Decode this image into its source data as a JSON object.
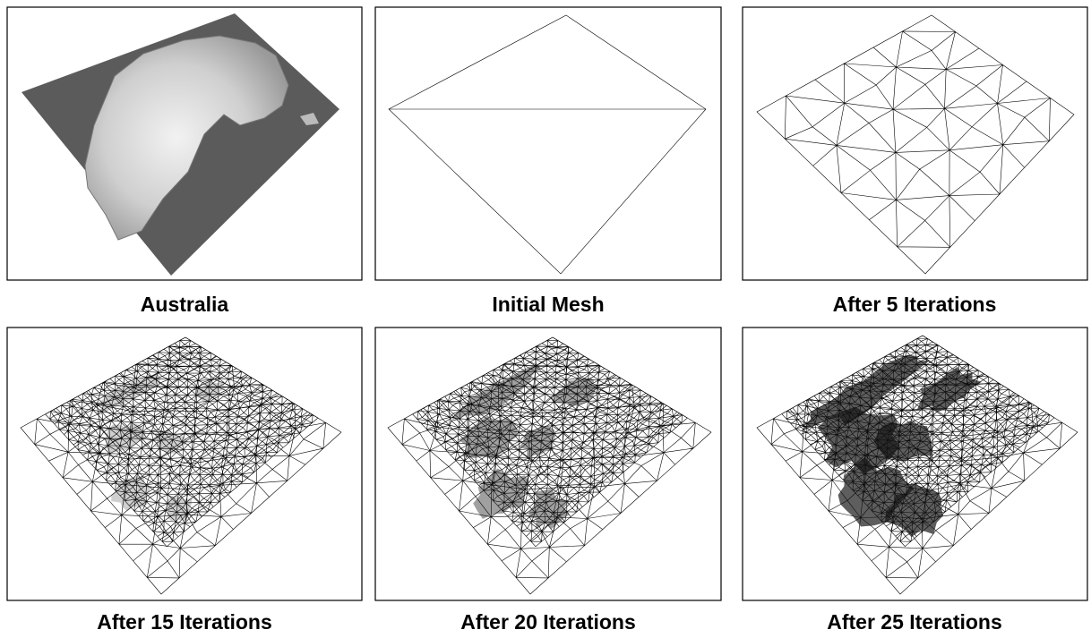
{
  "panels": [
    {
      "caption": "Australia"
    },
    {
      "caption": "Initial Mesh"
    },
    {
      "caption": "After 5 Iterations"
    },
    {
      "caption": "After 15 Iterations"
    },
    {
      "caption": "After 20 Iterations"
    },
    {
      "caption": "After 25 Iterations"
    }
  ]
}
